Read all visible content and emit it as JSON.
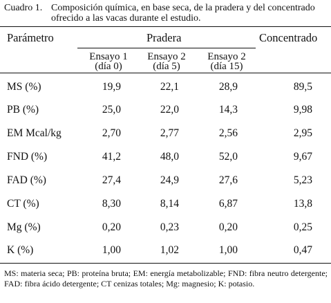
{
  "caption": {
    "number": "Cuadro 1.",
    "text": "Composición química, en base seca, de la pradera y del concentrado ofrecido a las vacas durante el estudio."
  },
  "header": {
    "parametro": "Parámetro",
    "pradera": "Pradera",
    "concentrado": "Concentrado",
    "subcols": [
      {
        "line1": "Ensayo 1",
        "line2": "(día 0)"
      },
      {
        "line1": "Ensayo 2",
        "line2": "(día 5)"
      },
      {
        "line1": "Ensayo 2",
        "line2": "(día 15)"
      }
    ]
  },
  "rows": [
    {
      "param": "MS (%)",
      "values": [
        "19,9",
        "22,1",
        "28,9",
        "89,5"
      ]
    },
    {
      "param": "PB (%)",
      "values": [
        "25,0",
        "22,0",
        "14,3",
        "9,98"
      ]
    },
    {
      "param": "EM Mcal/kg",
      "values": [
        "2,70",
        "2,77",
        "2,56",
        "2,95"
      ]
    },
    {
      "param": "FND (%)",
      "values": [
        "41,2",
        "48,0",
        "52,0",
        "9,67"
      ]
    },
    {
      "param": "FAD (%)",
      "values": [
        "27,4",
        "24,9",
        "27,6",
        "5,23"
      ]
    },
    {
      "param": "CT (%)",
      "values": [
        "8,30",
        "8,14",
        "6,87",
        "13,8"
      ]
    },
    {
      "param": "Mg (%)",
      "values": [
        "0,20",
        "0,23",
        "0,20",
        "0,25"
      ]
    },
    {
      "param": "K (%)",
      "values": [
        "1,00",
        "1,02",
        "1,00",
        "0,47"
      ]
    }
  ],
  "footnote": "MS: materia seca; PB: proteína bruta; EM: energía metabolizable; FND: fibra neutro detergente; FAD: fibra ácido detergente; CT cenizas totales; Mg: magnesio; K: potasio."
}
